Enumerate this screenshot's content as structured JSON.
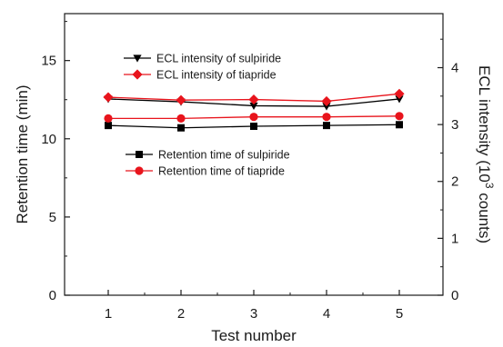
{
  "chart_data": {
    "type": "line",
    "xlabel": "Test number",
    "ylabel_left": "Retention time (min)",
    "ylabel_right_main": "ECL intensity  (10",
    "ylabel_right_sup": "3",
    "ylabel_right_tail": " counts)",
    "x_ticks": [
      1,
      2,
      3,
      4,
      5
    ],
    "y_left_ticks": [
      0,
      5,
      10,
      15
    ],
    "y_right_ticks": [
      0,
      1,
      2,
      3,
      4
    ],
    "xlim": [
      0.4,
      5.6
    ],
    "ylim_left": [
      0,
      18
    ],
    "ylim_right": [
      0,
      4.95
    ],
    "grid": false,
    "series": [
      {
        "name": "ECL intensity of sulpiride",
        "axis": "right",
        "marker": "triangle-down",
        "color": "#000000",
        "x": [
          1,
          2,
          3,
          4,
          5
        ],
        "values": [
          3.45,
          3.4,
          3.33,
          3.32,
          3.45
        ]
      },
      {
        "name": "ECL intensity of tiapride",
        "axis": "right",
        "marker": "diamond",
        "color": "#e8141c",
        "x": [
          1,
          2,
          3,
          4,
          5
        ],
        "values": [
          3.48,
          3.43,
          3.44,
          3.41,
          3.54
        ]
      },
      {
        "name": "Retention time of sulpiride",
        "axis": "left",
        "marker": "square",
        "color": "#000000",
        "x": [
          1,
          2,
          3,
          4,
          5
        ],
        "values": [
          10.85,
          10.7,
          10.8,
          10.85,
          10.9
        ]
      },
      {
        "name": "Retention time of tiapride",
        "axis": "left",
        "marker": "circle",
        "color": "#e8141c",
        "x": [
          1,
          2,
          3,
          4,
          5
        ],
        "values": [
          11.3,
          11.3,
          11.4,
          11.4,
          11.45
        ]
      }
    ],
    "legends": [
      {
        "position": "upper-left",
        "entries": [
          "ECL intensity of sulpiride",
          "ECL intensity of tiapride"
        ]
      },
      {
        "position": "center-left",
        "entries": [
          "Retention time of sulpiride",
          "Retention time of tiapride"
        ]
      }
    ]
  }
}
